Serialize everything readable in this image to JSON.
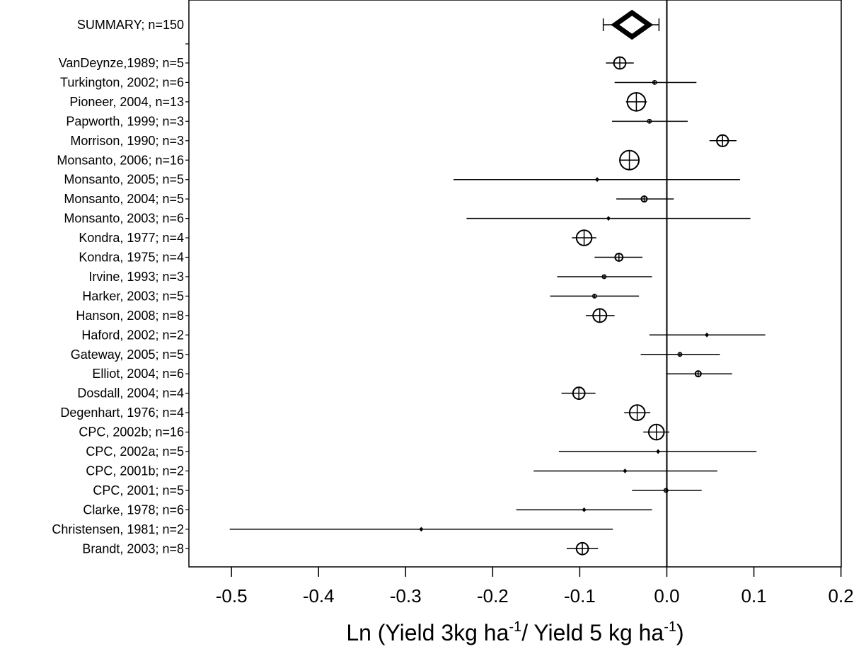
{
  "chart_data": {
    "type": "forest",
    "xlabel": {
      "prefix": "Ln (Yield 3kg ha",
      "sup1": "-1",
      "mid": "/ Yield 5 kg ha",
      "sup2": "-1",
      "suffix": ")"
    },
    "xlim": [
      -0.55,
      0.2
    ],
    "x_ticks": [
      -0.5,
      -0.4,
      -0.3,
      -0.2,
      -0.1,
      0.0,
      0.1,
      0.2
    ],
    "x_tick_labels": [
      "-0.5",
      "-0.4",
      "-0.3",
      "-0.2",
      "-0.1",
      "0.0",
      "0.1",
      "0.2"
    ],
    "reference_line": 0.0,
    "summary": {
      "label": "SUMMARY; n=150",
      "effect": -0.04,
      "ci": [
        -0.073,
        -0.009
      ]
    },
    "studies": [
      {
        "label": "VanDeynze,1989; n=5",
        "effect": -0.054,
        "ci": [
          -0.07,
          -0.038
        ],
        "marker_size": 0.62
      },
      {
        "label": "Turkington, 2002; n=6",
        "effect": -0.014,
        "ci": [
          -0.06,
          0.034
        ],
        "marker_size": 0.2
      },
      {
        "label": "Pioneer, 2004, n=13",
        "effect": -0.035,
        "ci": [
          -0.047,
          -0.023
        ],
        "marker_size": 0.95
      },
      {
        "label": "Papworth, 1999; n=3",
        "effect": -0.02,
        "ci": [
          -0.063,
          0.024
        ],
        "marker_size": 0.2
      },
      {
        "label": "Morrison, 1990; n=3",
        "effect": 0.064,
        "ci": [
          0.049,
          0.08
        ],
        "marker_size": 0.6
      },
      {
        "label": "Monsanto, 2006; n=16",
        "effect": -0.043,
        "ci": [
          -0.054,
          -0.033
        ],
        "marker_size": 1.0
      },
      {
        "label": "Monsanto, 2005; n=5",
        "effect": -0.08,
        "ci": [
          -0.245,
          0.084
        ],
        "marker_size": 0.1
      },
      {
        "label": "Monsanto, 2004; n=5",
        "effect": -0.026,
        "ci": [
          -0.058,
          0.008
        ],
        "marker_size": 0.3
      },
      {
        "label": "Monsanto, 2003; n=6",
        "effect": -0.067,
        "ci": [
          -0.23,
          0.096
        ],
        "marker_size": 0.1
      },
      {
        "label": "Kondra, 1977; n=4",
        "effect": -0.095,
        "ci": [
          -0.109,
          -0.081
        ],
        "marker_size": 0.8
      },
      {
        "label": "Kondra, 1975; n=4",
        "effect": -0.055,
        "ci": [
          -0.083,
          -0.028
        ],
        "marker_size": 0.4
      },
      {
        "label": "Irvine, 1993; n=3",
        "effect": -0.072,
        "ci": [
          -0.126,
          -0.017
        ],
        "marker_size": 0.2
      },
      {
        "label": "Harker, 2003; n=5",
        "effect": -0.083,
        "ci": [
          -0.134,
          -0.032
        ],
        "marker_size": 0.2
      },
      {
        "label": "Hanson, 2008; n=8",
        "effect": -0.077,
        "ci": [
          -0.093,
          -0.06
        ],
        "marker_size": 0.7
      },
      {
        "label": "Haford, 2002; n=2",
        "effect": 0.046,
        "ci": [
          -0.02,
          0.113
        ],
        "marker_size": 0.12
      },
      {
        "label": "Gateway, 2005; n=5",
        "effect": 0.015,
        "ci": [
          -0.03,
          0.061
        ],
        "marker_size": 0.2
      },
      {
        "label": "Elliot, 2004; n=6",
        "effect": 0.036,
        "ci": [
          -0.001,
          0.075
        ],
        "marker_size": 0.3
      },
      {
        "label": "Dosdall, 2004; n=4",
        "effect": -0.101,
        "ci": [
          -0.121,
          -0.082
        ],
        "marker_size": 0.62
      },
      {
        "label": "Degenhart, 1976; n=4",
        "effect": -0.034,
        "ci": [
          -0.049,
          -0.019
        ],
        "marker_size": 0.8
      },
      {
        "label": "CPC, 2002b; n=16",
        "effect": -0.012,
        "ci": [
          -0.027,
          0.003
        ],
        "marker_size": 0.8
      },
      {
        "label": "CPC, 2002a; n=5",
        "effect": -0.01,
        "ci": [
          -0.124,
          0.103
        ],
        "marker_size": 0.1
      },
      {
        "label": "CPC, 2001b; n=2",
        "effect": -0.048,
        "ci": [
          -0.153,
          0.058
        ],
        "marker_size": 0.1
      },
      {
        "label": "CPC, 2001; n=5",
        "effect": -0.001,
        "ci": [
          -0.04,
          0.04
        ],
        "marker_size": 0.2
      },
      {
        "label": "Clarke, 1978; n=6",
        "effect": -0.095,
        "ci": [
          -0.173,
          -0.017
        ],
        "marker_size": 0.12
      },
      {
        "label": "Christensen, 1981; n=2",
        "effect": -0.282,
        "ci": [
          -0.502,
          -0.062
        ],
        "marker_size": 0.1
      },
      {
        "label": "Brandt, 2003; n=8",
        "effect": -0.097,
        "ci": [
          -0.115,
          -0.079
        ],
        "marker_size": 0.62
      }
    ]
  }
}
